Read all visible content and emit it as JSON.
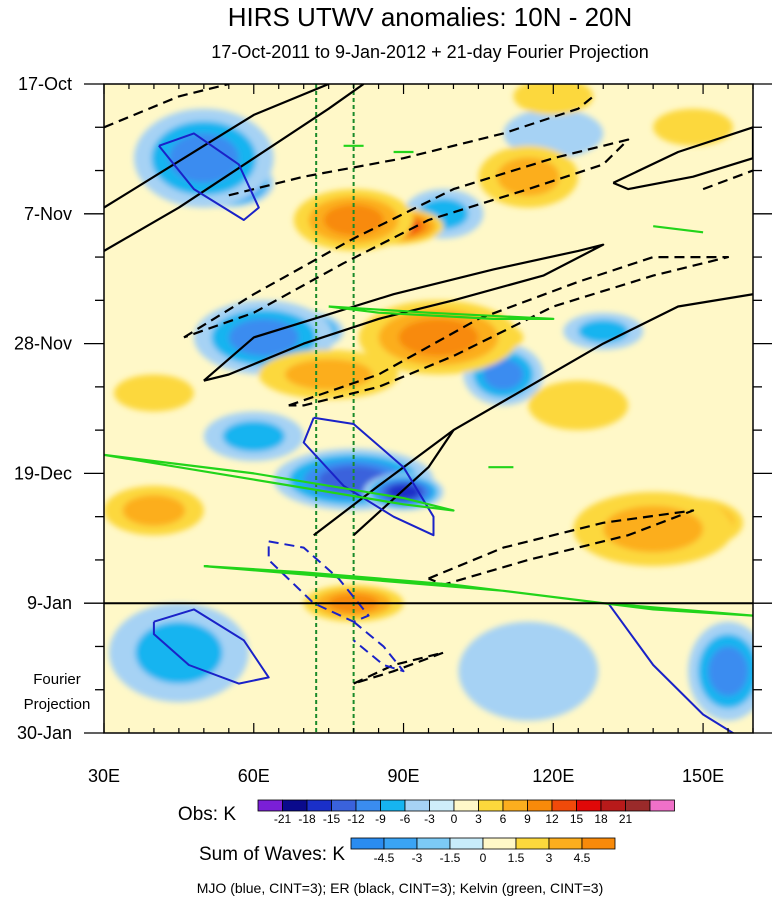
{
  "chart_data": {
    "type": "heatmap",
    "title": "HIRS UTWV anomalies: 10N - 20N",
    "subtitle": "17-Oct-2011 to 9-Jan-2012 + 21-day Fourier Projection",
    "x_axis": {
      "range": [
        30,
        160
      ],
      "ticks": [
        30,
        60,
        90,
        120,
        150
      ],
      "tick_labels": [
        "30E",
        "60E",
        "90E",
        "120E",
        "150E"
      ]
    },
    "y_axis": {
      "range_days": [
        0,
        105
      ],
      "ticks_days": [
        0,
        21,
        42,
        63,
        84,
        105
      ],
      "tick_labels": [
        "17-Oct",
        "7-Nov",
        "28-Nov",
        "19-Dec",
        "9-Jan",
        "30-Jan"
      ]
    },
    "projection_label": [
      "Fourier",
      "Projection"
    ],
    "observation_end_day": 84,
    "reference_lines_lon": [
      72.5,
      80
    ],
    "obs_colorbar": {
      "label": "Obs: K",
      "levels": [
        "-21",
        "-18",
        "-15",
        "-12",
        "-9",
        "-6",
        "-3",
        "0",
        "3",
        "6",
        "9",
        "12",
        "15",
        "18",
        "21"
      ],
      "colors": [
        "#7a1fd6",
        "#0a0a8c",
        "#1a2fc8",
        "#3a62dc",
        "#3a8cf0",
        "#16b4f0",
        "#a6d2f4",
        "#cfeefa",
        "#fff8c8",
        "#fcd83c",
        "#fcae1e",
        "#f88a0a",
        "#f04a0a",
        "#e00808",
        "#b81a1a",
        "#9a2a2a",
        "#f070c8"
      ]
    },
    "waves_colorbar": {
      "label": "Sum of Waves: K",
      "levels": [
        "-4.5",
        "-3",
        "-1.5",
        "0",
        "1.5",
        "3",
        "4.5"
      ],
      "colors": [
        "#2a8cf0",
        "#3aa4f4",
        "#7ccaf6",
        "#c8ecfa",
        "#fff8c8",
        "#fcd83c",
        "#fcae1e",
        "#f88a0a"
      ]
    },
    "footnote": "MJO (blue, CINT=3); ER (black, CINT=3); Kelvin (green, CINT=3)",
    "anomaly_blobs": [
      {
        "lon": 55,
        "day": 16,
        "rx": 9,
        "ry": 4,
        "v": -20
      },
      {
        "lon": 50,
        "day": 12,
        "rx": 14,
        "ry": 8,
        "v": -10
      },
      {
        "lon": 68,
        "day": 40,
        "rx": 10,
        "ry": 3.5,
        "v": -18
      },
      {
        "lon": 62,
        "day": 41,
        "rx": 14,
        "ry": 6,
        "v": -9
      },
      {
        "lon": 80,
        "day": 64,
        "rx": 16,
        "ry": 5,
        "v": -12
      },
      {
        "lon": 90,
        "day": 66,
        "rx": 8,
        "ry": 3,
        "v": -15
      },
      {
        "lon": 98,
        "day": 21,
        "rx": 8,
        "ry": 4,
        "v": -8
      },
      {
        "lon": 110,
        "day": 47,
        "rx": 8,
        "ry": 5,
        "v": -9
      },
      {
        "lon": 130,
        "day": 40,
        "rx": 8,
        "ry": 3,
        "v": -6
      },
      {
        "lon": 45,
        "day": 92,
        "rx": 14,
        "ry": 8,
        "v": -7
      },
      {
        "lon": 155,
        "day": 95,
        "rx": 8,
        "ry": 8,
        "v": -9
      },
      {
        "lon": 115,
        "day": 95,
        "rx": 14,
        "ry": 8,
        "v": -4
      },
      {
        "lon": 120,
        "day": 8,
        "rx": 10,
        "ry": 4,
        "v": -5
      },
      {
        "lon": 60,
        "day": 57,
        "rx": 10,
        "ry": 4,
        "v": -6
      },
      {
        "lon": 88,
        "day": 23,
        "rx": 10,
        "ry": 3,
        "v": 15
      },
      {
        "lon": 80,
        "day": 22,
        "rx": 12,
        "ry": 5,
        "v": 9
      },
      {
        "lon": 104,
        "day": 41,
        "rx": 10,
        "ry": 3,
        "v": 16
      },
      {
        "lon": 97,
        "day": 41,
        "rx": 16,
        "ry": 6,
        "v": 10
      },
      {
        "lon": 148,
        "day": 71,
        "rx": 10,
        "ry": 4,
        "v": 14
      },
      {
        "lon": 140,
        "day": 72,
        "rx": 16,
        "ry": 6,
        "v": 8
      },
      {
        "lon": 80,
        "day": 84,
        "rx": 10,
        "ry": 3,
        "v": 11
      },
      {
        "lon": 115,
        "day": 15,
        "rx": 10,
        "ry": 5,
        "v": 7
      },
      {
        "lon": 120,
        "day": 2,
        "rx": 8,
        "ry": 3,
        "v": 5
      },
      {
        "lon": 40,
        "day": 69,
        "rx": 10,
        "ry": 4,
        "v": 7
      },
      {
        "lon": 125,
        "day": 52,
        "rx": 10,
        "ry": 4,
        "v": 5
      },
      {
        "lon": 75,
        "day": 47,
        "rx": 14,
        "ry": 4,
        "v": 6
      },
      {
        "lon": 148,
        "day": 7,
        "rx": 8,
        "ry": 3,
        "v": 4
      },
      {
        "lon": 40,
        "day": 50,
        "rx": 8,
        "ry": 3,
        "v": 4
      }
    ],
    "mjo_contours": [
      {
        "style": "solid",
        "pts": [
          [
            41,
            10
          ],
          [
            48,
            8
          ],
          [
            57,
            13
          ],
          [
            61,
            20
          ],
          [
            58,
            22
          ],
          [
            48,
            17
          ],
          [
            41,
            10
          ]
        ]
      },
      {
        "style": "solid",
        "pts": [
          [
            72,
            54
          ],
          [
            80,
            55
          ],
          [
            90,
            62
          ],
          [
            96,
            70
          ],
          [
            96,
            73
          ],
          [
            88,
            70
          ],
          [
            78,
            65
          ],
          [
            70,
            58
          ],
          [
            72,
            54
          ]
        ]
      },
      {
        "style": "solid",
        "pts": [
          [
            40,
            87
          ],
          [
            48,
            85
          ],
          [
            58,
            90
          ],
          [
            63,
            96
          ],
          [
            57,
            97
          ],
          [
            47,
            94
          ],
          [
            40,
            89
          ],
          [
            40,
            87
          ]
        ]
      },
      {
        "style": "solid",
        "pts": [
          [
            131,
            84
          ],
          [
            140,
            94
          ],
          [
            150,
            102
          ],
          [
            160,
            107
          ]
        ]
      },
      {
        "style": "dashed",
        "pts": [
          [
            63,
            74
          ],
          [
            70,
            75
          ],
          [
            77,
            80
          ],
          [
            83,
            86
          ],
          [
            80,
            87
          ],
          [
            72,
            84
          ],
          [
            63,
            77
          ],
          [
            63,
            74
          ]
        ]
      },
      {
        "style": "dashed",
        "pts": [
          [
            80,
            87
          ],
          [
            86,
            91
          ],
          [
            90,
            95
          ],
          [
            86,
            94
          ],
          [
            80,
            90
          ]
        ]
      }
    ],
    "er_contours": [
      {
        "style": "solid",
        "pts": [
          [
            30,
            27
          ],
          [
            45,
            20
          ],
          [
            60,
            12
          ],
          [
            75,
            4
          ],
          [
            82,
            0
          ]
        ]
      },
      {
        "style": "solid",
        "pts": [
          [
            30,
            20
          ],
          [
            50,
            10
          ],
          [
            60,
            5
          ],
          [
            75,
            0
          ]
        ]
      },
      {
        "style": "solid",
        "pts": [
          [
            50,
            48
          ],
          [
            60,
            41
          ],
          [
            72,
            38
          ],
          [
            88,
            34
          ],
          [
            108,
            30
          ],
          [
            125,
            27
          ],
          [
            130,
            26
          ],
          [
            118,
            31
          ],
          [
            100,
            35
          ],
          [
            85,
            38
          ],
          [
            70,
            42
          ],
          [
            55,
            47
          ],
          [
            50,
            48
          ]
        ]
      },
      {
        "style": "solid",
        "pts": [
          [
            72,
            73
          ],
          [
            85,
            65
          ],
          [
            100,
            56
          ],
          [
            115,
            49
          ],
          [
            130,
            42
          ],
          [
            145,
            36
          ],
          [
            160,
            34
          ]
        ]
      },
      {
        "style": "solid",
        "pts": [
          [
            80,
            73
          ],
          [
            95,
            62
          ],
          [
            100,
            56
          ]
        ]
      },
      {
        "style": "solid",
        "pts": [
          [
            132,
            16
          ],
          [
            145,
            11
          ],
          [
            160,
            7
          ],
          [
            160,
            12
          ],
          [
            148,
            15
          ],
          [
            135,
            17
          ],
          [
            132,
            16
          ]
        ]
      },
      {
        "style": "dashed",
        "pts": [
          [
            30,
            7
          ],
          [
            45,
            2
          ],
          [
            55,
            0
          ]
        ]
      },
      {
        "style": "dashed",
        "pts": [
          [
            46,
            41
          ],
          [
            60,
            34
          ],
          [
            80,
            25
          ],
          [
            100,
            17
          ],
          [
            120,
            12
          ],
          [
            135,
            9
          ],
          [
            130,
            13
          ],
          [
            115,
            17
          ],
          [
            95,
            22
          ],
          [
            78,
            29
          ],
          [
            60,
            37
          ],
          [
            46,
            41
          ]
        ]
      },
      {
        "style": "dashed",
        "pts": [
          [
            67,
            52
          ],
          [
            85,
            47
          ],
          [
            105,
            38
          ],
          [
            125,
            32
          ],
          [
            140,
            28
          ],
          [
            155,
            28
          ],
          [
            140,
            31
          ],
          [
            120,
            36
          ],
          [
            100,
            44
          ],
          [
            85,
            49
          ],
          [
            70,
            52
          ],
          [
            67,
            52
          ]
        ]
      },
      {
        "style": "dashed",
        "pts": [
          [
            55,
            18
          ],
          [
            70,
            15
          ],
          [
            90,
            12
          ],
          [
            110,
            8
          ],
          [
            125,
            4
          ],
          [
            128,
            2
          ]
        ]
      },
      {
        "style": "dashed",
        "pts": [
          [
            150,
            17
          ],
          [
            160,
            14
          ]
        ]
      },
      {
        "style": "dashed",
        "pts": [
          [
            95,
            80
          ],
          [
            110,
            75
          ],
          [
            130,
            71
          ],
          [
            148,
            69
          ],
          [
            135,
            73
          ],
          [
            115,
            77
          ],
          [
            98,
            81
          ],
          [
            95,
            80
          ]
        ]
      },
      {
        "style": "dashed",
        "pts": [
          [
            80,
            97
          ],
          [
            88,
            94
          ],
          [
            98,
            92
          ],
          [
            88,
            95
          ],
          [
            80,
            97
          ]
        ]
      }
    ],
    "kelvin_contours": [
      {
        "pts": [
          [
            30,
            60
          ],
          [
            60,
            64
          ],
          [
            90,
            68
          ],
          [
            100,
            69
          ],
          [
            90,
            67
          ],
          [
            60,
            63
          ],
          [
            30,
            60
          ]
        ]
      },
      {
        "pts": [
          [
            50,
            78
          ],
          [
            80,
            80
          ],
          [
            110,
            82
          ],
          [
            140,
            85
          ],
          [
            160,
            86
          ],
          [
            130,
            84
          ],
          [
            100,
            81
          ],
          [
            70,
            79
          ],
          [
            50,
            78
          ]
        ]
      },
      {
        "pts": [
          [
            75,
            36
          ],
          [
            95,
            37
          ],
          [
            120,
            38
          ],
          [
            108,
            38
          ],
          [
            85,
            37
          ],
          [
            75,
            36
          ]
        ]
      },
      {
        "pts": [
          [
            107,
            62
          ],
          [
            112,
            62
          ]
        ]
      },
      {
        "pts": [
          [
            78,
            10
          ],
          [
            82,
            10
          ]
        ]
      },
      {
        "pts": [
          [
            88,
            11
          ],
          [
            92,
            11
          ]
        ]
      },
      {
        "pts": [
          [
            140,
            23
          ],
          [
            150,
            24
          ]
        ]
      }
    ]
  }
}
